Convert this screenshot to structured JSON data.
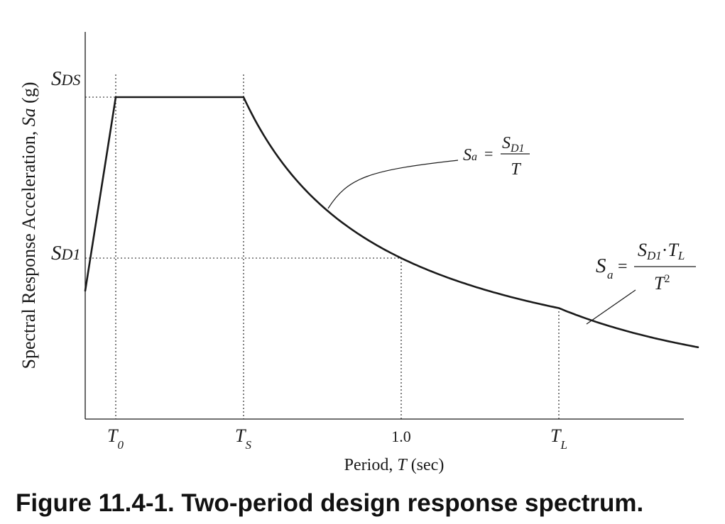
{
  "colors": {
    "ink": "#1a1a1a",
    "background": "#ffffff"
  },
  "axes": {
    "ylabel_main": "Spectral Response Acceleration, ",
    "ylabel_var": "Sa",
    "ylabel_unit": " (g)",
    "xlabel_main": "Period, ",
    "xlabel_var": "T",
    "xlabel_unit": " (sec)"
  },
  "y_marks": {
    "sds": {
      "main": "S",
      "sub": "DS"
    },
    "sd1": {
      "main": "S",
      "sub": "D1"
    }
  },
  "x_ticks": {
    "t0": {
      "main": "T",
      "sub": "0"
    },
    "ts": {
      "main": "T",
      "sub": "S"
    },
    "one": "1.0",
    "tl": {
      "main": "T",
      "sub": "L"
    }
  },
  "equations": {
    "short": {
      "lhs_main": "S",
      "lhs_sub": "a",
      "equals": "=",
      "num_main": "S",
      "num_sub": "D1",
      "den": "T"
    },
    "long": {
      "lhs_main": "S",
      "lhs_sub": "a",
      "equals": "=",
      "num_main": "S",
      "num_sub1": "D1",
      "dot": "·",
      "num_t": "T",
      "num_sub2": "L",
      "den_main": "T",
      "den_sup": "2"
    }
  },
  "caption": "Figure 11.4-1. Two-period design response spectrum."
}
